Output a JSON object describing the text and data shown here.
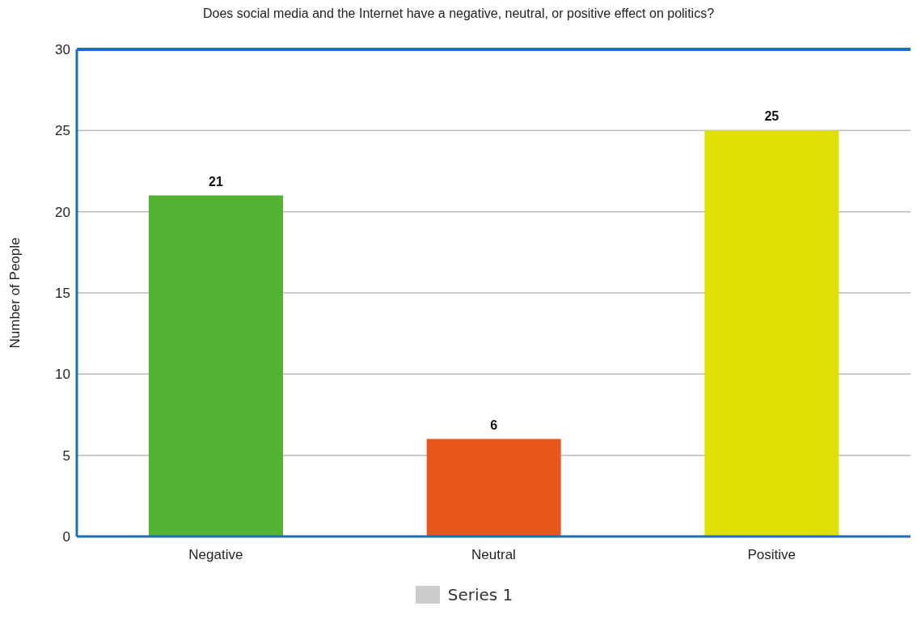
{
  "chart_data": {
    "type": "bar",
    "title": "Does social media and the Internet have a negative, neutral, or positive effect on politics?",
    "ylabel": "Number of People",
    "categories": [
      "Negative",
      "Neutral",
      "Positive"
    ],
    "series": [
      {
        "name": "Series 1",
        "color": "#cccccc",
        "colors": [
          "#52b232",
          "#e9571d",
          "#dde000"
        ],
        "values": [
          21,
          6,
          25
        ]
      }
    ],
    "ylim": [
      0,
      30
    ],
    "yticks": [
      0,
      5,
      10,
      15,
      20,
      25,
      30
    ],
    "grid": "y",
    "legend": "bottom",
    "data_labels": true
  }
}
